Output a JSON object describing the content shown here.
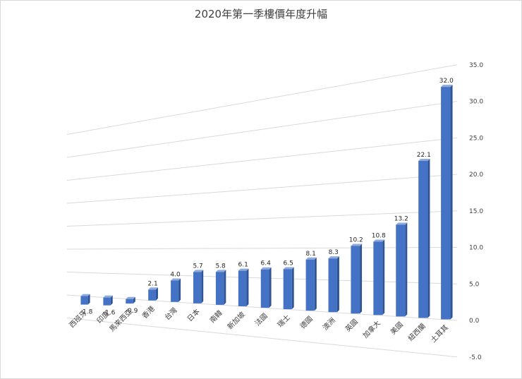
{
  "chart_data": {
    "type": "bar",
    "title": "2020年第一季樓價年度升幅",
    "categories": [
      "西班牙",
      "印度",
      "馬來西亞",
      "香港",
      "台灣",
      "日本",
      "南韓",
      "新加坡",
      "法國",
      "瑞士",
      "德國",
      "澳洲",
      "英國",
      "加拿大",
      "美國",
      "紐西蘭",
      "土耳其"
    ],
    "values": [
      -1.8,
      -1.6,
      -0.9,
      2.1,
      4.0,
      5.7,
      5.8,
      6.1,
      6.4,
      6.5,
      8.1,
      8.3,
      10.2,
      10.8,
      13.2,
      22.1,
      32.0
    ],
    "value_labels": [
      "-1.8",
      "-1.6",
      "-0.9",
      "2.1",
      "4.0",
      "5.7",
      "5.8",
      "6.1",
      "6.4",
      "6.5",
      "8.1",
      "8.3",
      "10.2",
      "10.8",
      "13.2",
      "22.1",
      "32.0"
    ],
    "yticks": [
      "-5.0",
      "0.0",
      "5.0",
      "10.0",
      "15.0",
      "20.0",
      "25.0",
      "30.0",
      "35.0"
    ],
    "ylim": [
      -5,
      35
    ],
    "grid": true,
    "legend": "none",
    "colors": {
      "bar_front": "#4472c4",
      "bar_side": "#2f5597",
      "bar_top": "#8faadc",
      "grid": "#d9d9d9",
      "text": "#404040"
    }
  }
}
